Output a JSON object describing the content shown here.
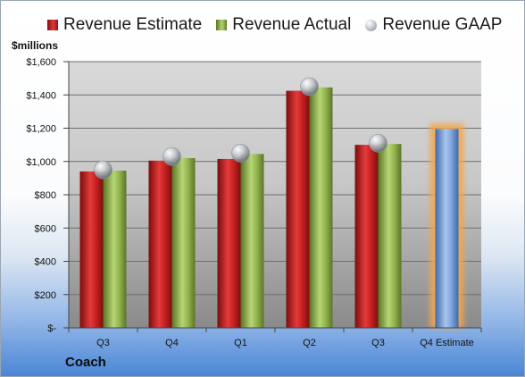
{
  "chart_data": {
    "type": "bar",
    "ylabel": "$millions",
    "ylim": [
      0,
      1600
    ],
    "yticks": [
      0,
      200,
      400,
      600,
      800,
      1000,
      1200,
      1400,
      1600
    ],
    "ytick_labels": [
      "$-",
      "$200",
      "$400",
      "$600",
      "$800",
      "$1,000",
      "$1,200",
      "$1,400",
      "$1,600"
    ],
    "categories": [
      "Q3",
      "Q4",
      "Q1",
      "Q2",
      "Q3",
      "Q4 Estimate"
    ],
    "series": [
      {
        "name": "Revenue Estimate",
        "kind": "bar",
        "color": "#c8201f",
        "values": [
          940,
          1005,
          1015,
          1425,
          1100,
          null
        ]
      },
      {
        "name": "Revenue Actual",
        "kind": "bar",
        "color": "#8fb04a",
        "values": [
          945,
          1020,
          1045,
          1445,
          1105,
          null
        ]
      },
      {
        "name": "Revenue GAAP",
        "kind": "marker",
        "color": "#b9bcc2",
        "values": [
          950,
          1030,
          1050,
          1450,
          1110,
          null
        ]
      }
    ],
    "estimate_bar": {
      "category": "Q4 Estimate",
      "value": 1195,
      "color": "#6f9ad6",
      "glow": "#f5a64a"
    },
    "grid": true,
    "legend_position": "top"
  },
  "footer": {
    "company": "Coach"
  }
}
